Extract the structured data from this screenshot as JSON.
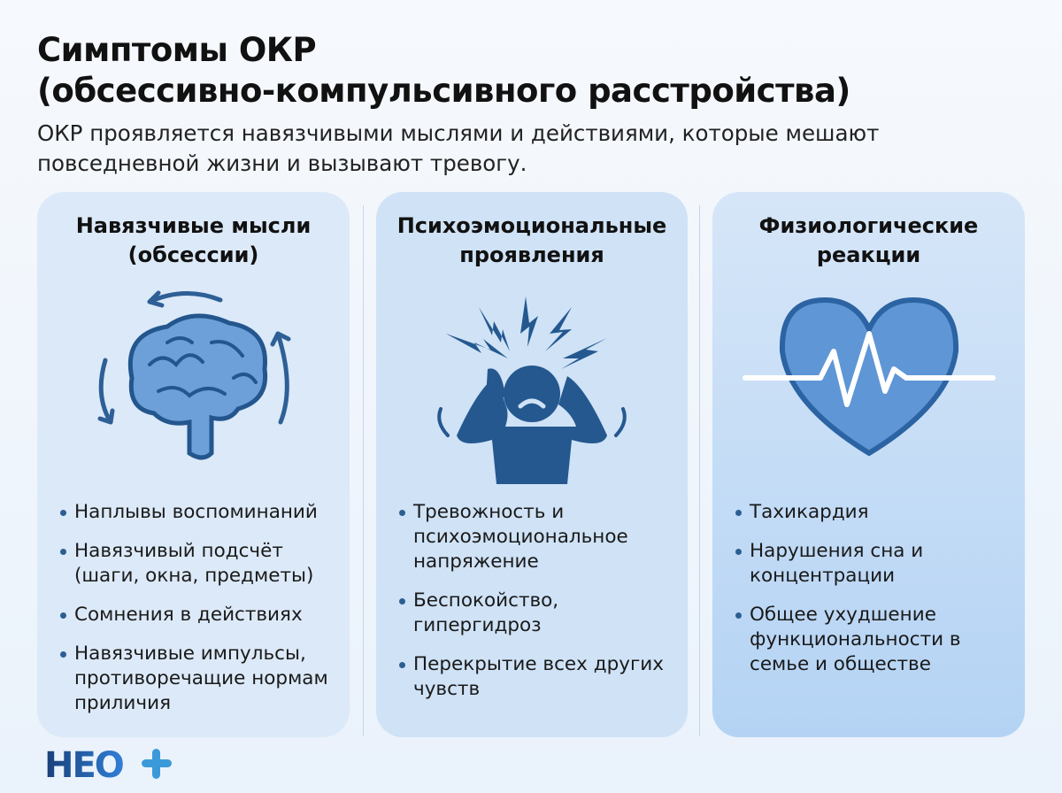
{
  "header": {
    "title_line1": "Симптомы ОКР",
    "title_line2": "(обсессивно-компульсивного расстройства)",
    "subtitle": "ОКР проявляется навязчивыми мыслями и действиями, которые мешают повседневной жизни и вызывают тревогу."
  },
  "cards": [
    {
      "title_line1": "Навязчивые мысли",
      "title_line2": "(обсессии)",
      "icon": "brain-with-cycle-arrows-icon",
      "items": [
        "Наплывы воспоминаний",
        "Навязчивый подсчёт (шаги, окна, предметы)",
        "Сомнения в действиях",
        "Навязчивые импульсы, противоречащие нормам приличия"
      ]
    },
    {
      "title_line1": "Психоэмоциональные",
      "title_line2": "проявления",
      "icon": "stressed-person-icon",
      "items": [
        "Тревожность и психоэмоциональное напряжение",
        "Беспокойство, гипергидроз",
        "Перекрытие всех других чувств"
      ]
    },
    {
      "title_line1": "Физиологические",
      "title_line2": "реакции",
      "icon": "heart-pulse-icon",
      "items": [
        "Тахикардия",
        "Нарушения сна и концентрации",
        "Общее ухудшение функциональности в семье и обществе"
      ]
    }
  ],
  "logo": {
    "text": "НЕО+"
  },
  "colors": {
    "icon": "#2e6aa6",
    "bullet": "#2b5f93",
    "logo_dark": "#1d4f8f",
    "logo_accent": "#3a9ad9"
  }
}
